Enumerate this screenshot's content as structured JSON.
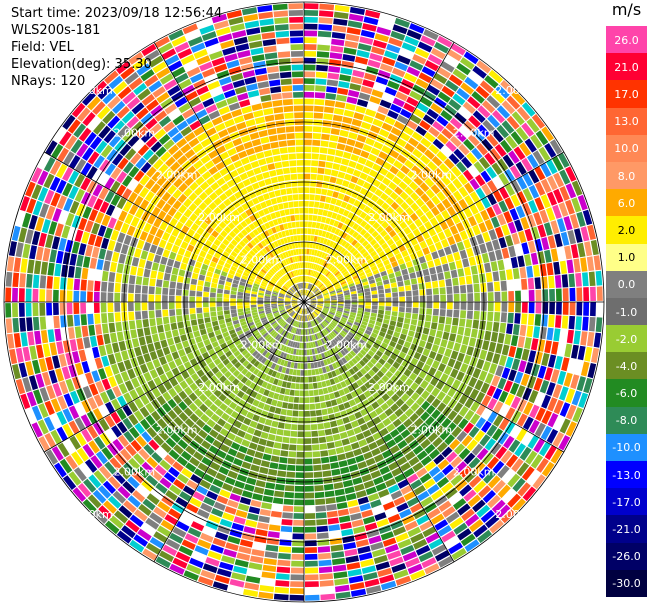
{
  "header": {
    "start_time": "Start time: 2023/09/18 12:56:44",
    "instrument": "WLS200s-181",
    "field": "Field: VEL",
    "elevation": "Elevation(deg): 35.30",
    "nrays": "NRays: 120"
  },
  "colorbar": {
    "unit": "m/s",
    "levels": [
      {
        "label": "26.0",
        "color": "#ff44aa"
      },
      {
        "label": "21.0",
        "color": "#ff0033"
      },
      {
        "label": "17.0",
        "color": "#ff3300"
      },
      {
        "label": "13.0",
        "color": "#ff6633"
      },
      {
        "label": "10.0",
        "color": "#ff8855"
      },
      {
        "label": "8.0",
        "color": "#ff9966"
      },
      {
        "label": "6.0",
        "color": "#ffaa00"
      },
      {
        "label": "2.0",
        "color": "#ffee00"
      },
      {
        "label": "1.0",
        "color": "#ffff88"
      },
      {
        "label": "0.0",
        "color": "#7f7f7f"
      },
      {
        "label": "-1.0",
        "color": "#6e6e6e"
      },
      {
        "label": "-2.0",
        "color": "#99cc33"
      },
      {
        "label": "-4.0",
        "color": "#6b8e23"
      },
      {
        "label": "-6.0",
        "color": "#228b22"
      },
      {
        "label": "-8.0",
        "color": "#2e8b57"
      },
      {
        "label": "-10.0",
        "color": "#1e90ff"
      },
      {
        "label": "-13.0",
        "color": "#0000ff"
      },
      {
        "label": "-17.0",
        "color": "#0000cd"
      },
      {
        "label": "-21.0",
        "color": "#00008b"
      },
      {
        "label": "-26.0",
        "color": "#000066"
      },
      {
        "label": "-30.0",
        "color": "#000040"
      }
    ]
  },
  "range_labels": [
    "2.00km"
  ]
}
